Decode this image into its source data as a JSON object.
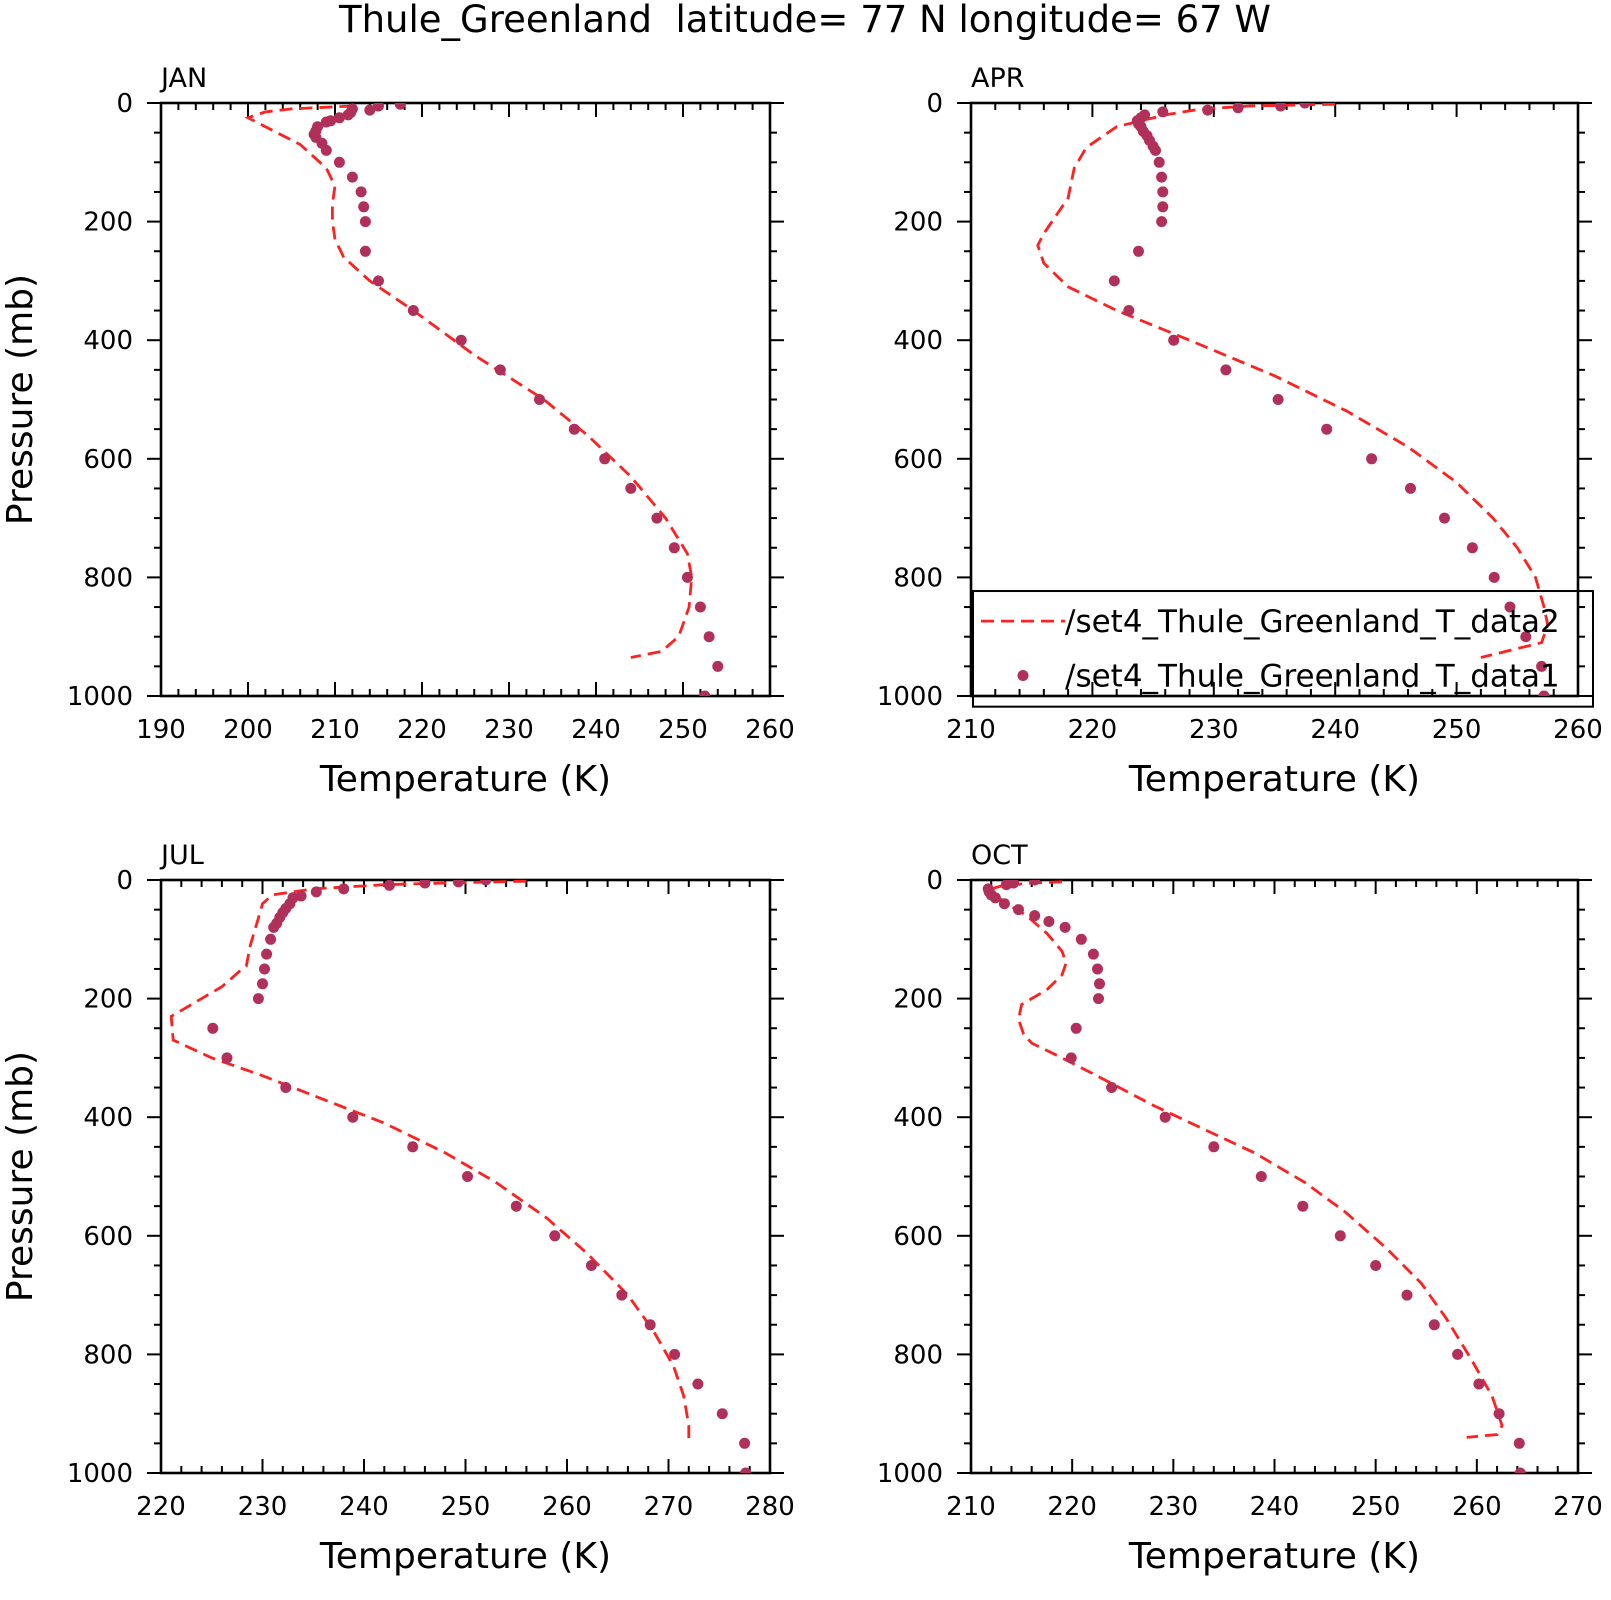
{
  "figure_title": "Thule_Greenland  latitude= 77 N longitude= 67 W",
  "colors": {
    "model_line": "#ff2020",
    "obs_points": "#b0305a",
    "axes": "#000000"
  },
  "legend": {
    "line_label": "/set4_Thule_Greenland_T_data2",
    "points_label": "/set4_Thule_Greenland_T_data1"
  },
  "chart_data": [
    {
      "type": "line",
      "panel_label": "JAN",
      "xlabel": "Temperature (K)",
      "ylabel": "Pressure (mb)",
      "xlim": [
        190,
        260
      ],
      "ylim": [
        1000,
        0
      ],
      "y_inverted": true,
      "xticks": [
        190,
        200,
        210,
        220,
        230,
        240,
        250,
        260
      ],
      "yticks": [
        0,
        200,
        400,
        600,
        800,
        1000
      ],
      "series": [
        {
          "style": "dashed-line",
          "points": [
            [
              212,
              5
            ],
            [
              205,
              10
            ],
            [
              202,
              15
            ],
            [
              200,
              25
            ],
            [
              202,
              40
            ],
            [
              206,
              70
            ],
            [
              209,
              110
            ],
            [
              210,
              140
            ],
            [
              209.7,
              170
            ],
            [
              209.7,
              200
            ],
            [
              210,
              230
            ],
            [
              211,
              260
            ],
            [
              214,
              300
            ],
            [
              219,
              350
            ],
            [
              226,
              425
            ],
            [
              234,
              500
            ],
            [
              239,
              560
            ],
            [
              244,
              630
            ],
            [
              248,
              700
            ],
            [
              250.5,
              760
            ],
            [
              251,
              800
            ],
            [
              250.7,
              850
            ],
            [
              249.5,
              900
            ],
            [
              247.5,
              925
            ],
            [
              244,
              935
            ]
          ]
        },
        {
          "style": "dots",
          "points": [
            [
              217.5,
              2
            ],
            [
              215,
              5
            ],
            [
              214,
              12
            ],
            [
              212,
              10
            ],
            [
              211.8,
              16
            ],
            [
              211.5,
              20
            ],
            [
              210.5,
              25
            ],
            [
              209.5,
              30
            ],
            [
              209,
              32
            ],
            [
              208,
              40
            ],
            [
              207.8,
              47
            ],
            [
              207.6,
              53
            ],
            [
              207.8,
              58
            ],
            [
              208.5,
              68
            ],
            [
              209,
              80
            ],
            [
              210.5,
              100
            ],
            [
              212,
              125
            ],
            [
              213,
              150
            ],
            [
              213.3,
              175
            ],
            [
              213.5,
              200
            ],
            [
              213.5,
              250
            ],
            [
              215,
              300
            ],
            [
              219,
              350
            ],
            [
              224.5,
              400
            ],
            [
              229,
              450
            ],
            [
              233.5,
              500
            ],
            [
              237.5,
              550
            ],
            [
              241,
              600
            ],
            [
              244,
              650
            ],
            [
              247,
              700
            ],
            [
              249,
              750
            ],
            [
              250.5,
              800
            ],
            [
              252,
              850
            ],
            [
              253,
              900
            ],
            [
              254,
              950
            ],
            [
              252.5,
              1000
            ]
          ]
        }
      ]
    },
    {
      "type": "line",
      "panel_label": "APR",
      "xlabel": "Temperature (K)",
      "ylabel": "",
      "xlim": [
        210,
        260
      ],
      "ylim": [
        1000,
        0
      ],
      "y_inverted": true,
      "xticks": [
        210,
        220,
        230,
        240,
        250,
        260
      ],
      "yticks": [
        0,
        200,
        400,
        600,
        800,
        1000
      ],
      "series": [
        {
          "style": "dashed-line",
          "points": [
            [
              240,
              2
            ],
            [
              233,
              5
            ],
            [
              229,
              10
            ],
            [
              226,
              20
            ],
            [
              222,
              40
            ],
            [
              219.5,
              75
            ],
            [
              218.5,
              110
            ],
            [
              218,
              160
            ],
            [
              217,
              190
            ],
            [
              216,
              220
            ],
            [
              215.5,
              240
            ],
            [
              216,
              270
            ],
            [
              218,
              310
            ],
            [
              222,
              350
            ],
            [
              228,
              400
            ],
            [
              235,
              460
            ],
            [
              241,
              520
            ],
            [
              246,
              580
            ],
            [
              250,
              640
            ],
            [
              253,
              700
            ],
            [
              255,
              750
            ],
            [
              256.5,
              800
            ],
            [
              257.2,
              850
            ],
            [
              257.5,
              880
            ],
            [
              257,
              910
            ],
            [
              252,
              935
            ]
          ]
        },
        {
          "style": "dots",
          "points": [
            [
              237.5,
              0
            ],
            [
              235.5,
              5
            ],
            [
              232,
              8
            ],
            [
              229.5,
              12
            ],
            [
              225.8,
              15
            ],
            [
              224.3,
              20
            ],
            [
              224,
              25
            ],
            [
              223.7,
              30
            ],
            [
              223.8,
              35
            ],
            [
              224,
              40
            ],
            [
              224.2,
              48
            ],
            [
              224.5,
              55
            ],
            [
              224.7,
              63
            ],
            [
              225,
              73
            ],
            [
              225.2,
              80
            ],
            [
              225.5,
              100
            ],
            [
              225.7,
              125
            ],
            [
              225.8,
              150
            ],
            [
              225.8,
              175
            ],
            [
              225.7,
              200
            ],
            [
              223.8,
              250
            ],
            [
              221.8,
              300
            ],
            [
              223,
              350
            ],
            [
              226.7,
              400
            ],
            [
              231,
              450
            ],
            [
              235.3,
              500
            ],
            [
              239.3,
              550
            ],
            [
              243,
              600
            ],
            [
              246.2,
              650
            ],
            [
              249,
              700
            ],
            [
              251.3,
              750
            ],
            [
              253.1,
              800
            ],
            [
              254.4,
              850
            ],
            [
              255.7,
              900
            ],
            [
              257,
              950
            ],
            [
              257.2,
              1000
            ]
          ]
        }
      ]
    },
    {
      "type": "line",
      "panel_label": "JUL",
      "xlabel": "Temperature (K)",
      "ylabel": "Pressure (mb)",
      "xlim": [
        220,
        280
      ],
      "ylim": [
        1000,
        0
      ],
      "y_inverted": true,
      "xticks": [
        220,
        230,
        240,
        250,
        260,
        270,
        280
      ],
      "yticks": [
        0,
        200,
        400,
        600,
        800,
        1000
      ],
      "series": [
        {
          "style": "dashed-line",
          "points": [
            [
              256,
              2
            ],
            [
              248,
              5
            ],
            [
              242,
              8
            ],
            [
              235,
              15
            ],
            [
              231,
              25
            ],
            [
              230,
              40
            ],
            [
              229.5,
              70
            ],
            [
              228.8,
              110
            ],
            [
              228.4,
              145
            ],
            [
              228,
              150
            ],
            [
              226,
              180
            ],
            [
              224,
              200
            ],
            [
              221,
              230
            ],
            [
              221.2,
              270
            ],
            [
              225,
              300
            ],
            [
              230,
              330
            ],
            [
              236,
              370
            ],
            [
              242,
              410
            ],
            [
              248,
              460
            ],
            [
              253,
              510
            ],
            [
              258,
              570
            ],
            [
              262,
              630
            ],
            [
              266,
              700
            ],
            [
              268.5,
              760
            ],
            [
              270.5,
              820
            ],
            [
              271.5,
              870
            ],
            [
              272,
              920
            ],
            [
              272,
              945
            ]
          ]
        },
        {
          "style": "dots",
          "points": [
            [
              252,
              0
            ],
            [
              249.3,
              3
            ],
            [
              246,
              5
            ],
            [
              242.5,
              9
            ],
            [
              238,
              15
            ],
            [
              235.3,
              20
            ],
            [
              233.8,
              27
            ],
            [
              233,
              30
            ],
            [
              232.7,
              40
            ],
            [
              232.3,
              48
            ],
            [
              232,
              55
            ],
            [
              231.7,
              63
            ],
            [
              231.4,
              73
            ],
            [
              231.1,
              80
            ],
            [
              230.8,
              100
            ],
            [
              230.4,
              125
            ],
            [
              230.2,
              150
            ],
            [
              230,
              175
            ],
            [
              229.6,
              200
            ],
            [
              225.1,
              250
            ],
            [
              226.5,
              300
            ],
            [
              232.3,
              350
            ],
            [
              238.9,
              400
            ],
            [
              244.8,
              450
            ],
            [
              250.2,
              500
            ],
            [
              255,
              550
            ],
            [
              258.8,
              600
            ],
            [
              262.4,
              650
            ],
            [
              265.4,
              700
            ],
            [
              268.2,
              750
            ],
            [
              270.6,
              800
            ],
            [
              272.9,
              850
            ],
            [
              275.3,
              900
            ],
            [
              277.5,
              950
            ],
            [
              277.6,
              1000
            ]
          ]
        }
      ]
    },
    {
      "type": "line",
      "panel_label": "OCT",
      "xlabel": "Temperature (K)",
      "ylabel": "",
      "xlim": [
        210,
        270
      ],
      "ylim": [
        1000,
        0
      ],
      "y_inverted": true,
      "xticks": [
        210,
        220,
        230,
        240,
        250,
        260,
        270
      ],
      "yticks": [
        0,
        200,
        400,
        600,
        800,
        1000
      ],
      "series": [
        {
          "style": "dashed-line",
          "points": [
            [
              219,
              3
            ],
            [
              216,
              5
            ],
            [
              213,
              10
            ],
            [
              212,
              15
            ],
            [
              212.4,
              25
            ],
            [
              213.5,
              40
            ],
            [
              215.5,
              60
            ],
            [
              217.5,
              90
            ],
            [
              219,
              120
            ],
            [
              219.4,
              140
            ],
            [
              219,
              160
            ],
            [
              217.5,
              185
            ],
            [
              215,
              210
            ],
            [
              214.7,
              235
            ],
            [
              215.2,
              260
            ],
            [
              216,
              275
            ],
            [
              219,
              300
            ],
            [
              223,
              335
            ],
            [
              228,
              380
            ],
            [
              233,
              420
            ],
            [
              238,
              460
            ],
            [
              243,
              510
            ],
            [
              247,
              560
            ],
            [
              251,
              620
            ],
            [
              254.5,
              680
            ],
            [
              257,
              740
            ],
            [
              259.5,
              810
            ],
            [
              261.5,
              870
            ],
            [
              262.5,
              920
            ],
            [
              262,
              935
            ],
            [
              259,
              940
            ]
          ]
        },
        {
          "style": "dots",
          "points": [
            [
              216.3,
              0
            ],
            [
              214.2,
              5
            ],
            [
              213.5,
              8
            ],
            [
              211.7,
              15
            ],
            [
              211.8,
              20
            ],
            [
              212,
              25
            ],
            [
              212.4,
              30
            ],
            [
              213.3,
              40
            ],
            [
              214.7,
              50
            ],
            [
              216.3,
              60
            ],
            [
              217.7,
              70
            ],
            [
              219.3,
              80
            ],
            [
              220.9,
              100
            ],
            [
              222.1,
              125
            ],
            [
              222.5,
              150
            ],
            [
              222.7,
              175
            ],
            [
              222.6,
              200
            ],
            [
              220.4,
              250
            ],
            [
              219.9,
              300
            ],
            [
              223.9,
              350
            ],
            [
              229.2,
              400
            ],
            [
              234,
              450
            ],
            [
              238.7,
              500
            ],
            [
              242.8,
              550
            ],
            [
              246.5,
              600
            ],
            [
              250,
              650
            ],
            [
              253.1,
              700
            ],
            [
              255.8,
              750
            ],
            [
              258.1,
              800
            ],
            [
              260.2,
              850
            ],
            [
              262.2,
              900
            ],
            [
              264.2,
              950
            ],
            [
              264.3,
              1000
            ]
          ]
        }
      ]
    }
  ]
}
